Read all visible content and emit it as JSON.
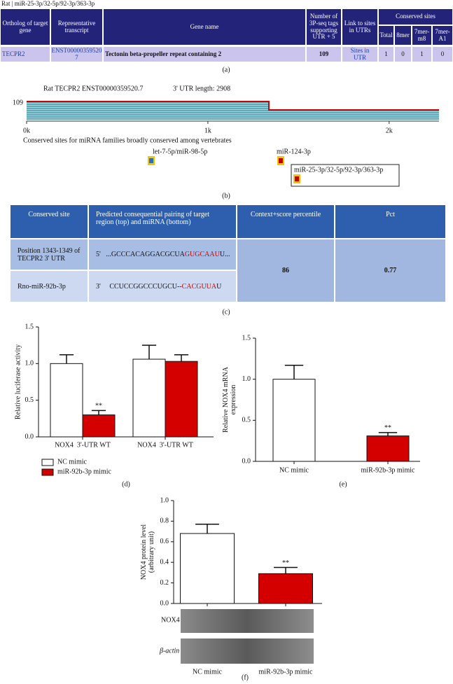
{
  "panel_a": {
    "title": "Rat | miR-25-3p/32-5p/92-3p/363-3p",
    "headers": [
      "Ortholog of target gene",
      "Representative transcript",
      "Gene name",
      "Number of 3P-seq tags supporting UTR + 5",
      "Link to sites in UTRs"
    ],
    "conserved_header": "Conserved sites",
    "sub_headers": [
      "Total",
      "8mer",
      "7mer-m8",
      "7mer-A1"
    ],
    "row": [
      "TECPR2",
      "ENST00000359520 7",
      "Tectonin beta-propeller repeat containing 2",
      109,
      "Sites in UTR",
      1,
      0,
      1,
      0
    ],
    "label": "(a)"
  },
  "panel_b": {
    "title": "Rat TECPR2 ENST00000359520.7",
    "utr_length": "3' UTR length: 2908",
    "coverage_label": "109",
    "xlim": [
      0,
      2275
    ],
    "xticks": [
      {
        "value": 0,
        "label": "0k"
      },
      {
        "value": 1000,
        "label": "1k"
      },
      {
        "value": 2000,
        "label": "2k"
      }
    ],
    "caption": "Conserved sites for miRNA families broadly conserved among vertebrates",
    "sites": [
      "let-7-5p/miR-98-5p",
      "miR-124-3p",
      "miR-25-3p/32-5p/92-3p/363-3p"
    ],
    "label": "(b)"
  },
  "panel_c": {
    "headers": [
      "Conserved site",
      "Predicted consequential pairing of target region (top) and miRNA (bottom)",
      "Context+score percentile",
      "Pct"
    ],
    "site": "Position 1343-1349 of TECPR2 3' UTR",
    "mirna": "Rno-miR-92b-3p",
    "target": {
      "prime": "5'",
      "parts": [
        "...GCCCACAGGACGCUA",
        "GUGCAAU",
        "U..."
      ]
    },
    "mirna_seq": {
      "prime": "3'",
      "parts": [
        "CCUCCGGCCCUGCU--",
        "CACGUUA",
        "U"
      ]
    },
    "percentile": 86,
    "pct": 0.77,
    "label": "(c)"
  },
  "blots": {
    "labels": [
      "NOX4",
      "β-actin"
    ]
  },
  "chart_data": [
    {
      "type": "bar",
      "panel_label": "(d)",
      "ylabel": [
        "Relative luciferase activity"
      ],
      "categories": [
        "NOX4  3'-UTR WT",
        "NOX4  3'-UTR WT"
      ],
      "series": [
        {
          "name": "NC mimic",
          "color": "#ffffff",
          "values": [
            1.0,
            1.06
          ],
          "errors": [
            0.12,
            0.19
          ]
        },
        {
          "name": "miR-92b-3p mimic",
          "color": "#d40000",
          "values": [
            0.3,
            1.03
          ],
          "errors": [
            0.06,
            0.09
          ],
          "significance": [
            "**",
            null
          ]
        }
      ],
      "ylim": [
        0,
        1.5
      ],
      "yticks": [
        {
          "value": 0,
          "label": "0.0"
        },
        {
          "value": 0.5,
          "label": "0.5"
        },
        {
          "value": 1,
          "label": "1.0"
        },
        {
          "value": 1.5,
          "label": "1.5"
        }
      ],
      "legend": "bottom-left"
    },
    {
      "type": "bar",
      "panel_label": "(e)",
      "ylabel": [
        "Relative NOX4 mRNA",
        "expression"
      ],
      "categories": [
        "NC mimic",
        "miR-92b-3p mimic"
      ],
      "series": [
        {
          "colors": [
            "#ffffff",
            "#d40000"
          ],
          "values": [
            1.0,
            0.31
          ],
          "errors": [
            0.17,
            0.04
          ],
          "significance": [
            null,
            "**"
          ]
        }
      ],
      "ylim": [
        0,
        1.5
      ],
      "yticks": [
        {
          "value": 0,
          "label": "0.0"
        },
        {
          "value": 0.5,
          "label": "0.5"
        },
        {
          "value": 1,
          "label": "1.0"
        },
        {
          "value": 1.5,
          "label": "1.5"
        }
      ]
    },
    {
      "type": "bar",
      "panel_label": "(f)",
      "ylabel": [
        "NOX4 protein level",
        "(arbitrary unit)"
      ],
      "categories": [
        "NC mimic",
        "miR-92b-3p mimic"
      ],
      "series": [
        {
          "colors": [
            "#ffffff",
            "#d40000"
          ],
          "values": [
            0.68,
            0.29
          ],
          "errors": [
            0.09,
            0.06
          ],
          "significance": [
            null,
            "**"
          ]
        }
      ],
      "ylim": [
        0,
        1.0
      ],
      "yticks": [
        {
          "value": 0,
          "label": "0.0"
        },
        {
          "value": 0.2,
          "label": "0.2"
        },
        {
          "value": 0.4,
          "label": "0.4"
        },
        {
          "value": 0.6,
          "label": "0.6"
        },
        {
          "value": 0.8,
          "label": "0.8"
        },
        {
          "value": 1.0,
          "label": "1.0"
        }
      ]
    }
  ]
}
